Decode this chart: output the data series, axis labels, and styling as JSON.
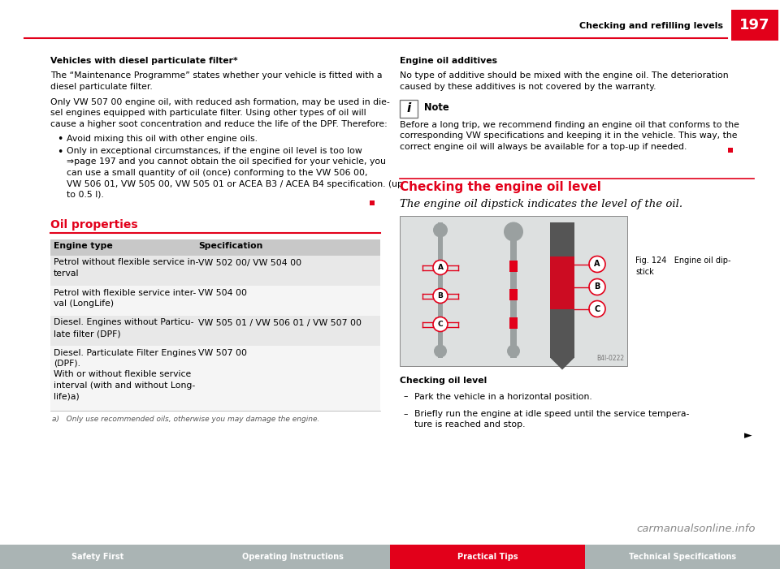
{
  "page_number": "197",
  "header_text": "Checking and refilling levels",
  "header_line_color": "#e2001a",
  "page_bg": "#ffffff",
  "section1_title": "Vehicles with diesel particulate filter*",
  "section1_para1_lines": [
    "The “Maintenance Programme” states whether your vehicle is fitted with a",
    "diesel particulate filter."
  ],
  "section1_para2_lines": [
    "Only VW 507 00 engine oil, with reduced ash formation, may be used in die-",
    "sel engines equipped with particulate filter. Using other types of oil will",
    "cause a higher soot concentration and reduce the life of the DPF. Therefore:"
  ],
  "section1_bullet1": "Avoid mixing this oil with other engine oils.",
  "section1_bullet2_lines": [
    "Only in exceptional circumstances, if the engine oil level is too low",
    "⇒page 197 and you cannot obtain the oil specified for your vehicle, you",
    "can use a small quantity of oil (once) conforming to the VW 506 00,",
    "VW 506 01, VW 505 00, VW 505 01 or ACEA B3 / ACEA B4 specification. (up",
    "to 0.5 l)."
  ],
  "oil_props_title": "Oil properties",
  "oil_props_title_color": "#e2001a",
  "table_headers": [
    "Engine type",
    "Specification"
  ],
  "table_col1_rows": [
    "Petrol without flexible service in-\nterval",
    "Petrol with flexible service inter-\nval (LongLife)",
    "Diesel. Engines without Particu-\nlate filter (DPF)",
    "Diesel. Particulate Filter Engines\n(DPF).\nWith or without flexible service\ninterval (with and without Long-\nlife)a)"
  ],
  "table_col2_rows": [
    "VW 502 00/ VW 504 00",
    "VW 504 00",
    "VW 505 01 / VW 506 01 / VW 507 00",
    "VW 507 00"
  ],
  "table_footnote": "a)   Only use recommended oils, otherwise you may damage the engine.",
  "table_header_bg": "#c8c8c8",
  "table_row_bg_even": "#e8e8e8",
  "table_row_bg_odd": "#f5f5f5",
  "right_section_title": "Engine oil additives",
  "right_section_para_lines": [
    "No type of additive should be mixed with the engine oil. The deterioration",
    "caused by these additives is not covered by the warranty."
  ],
  "note_title": "Note",
  "note_para_lines": [
    "Before a long trip, we recommend finding an engine oil that conforms to the",
    "corresponding VW specifications and keeping it in the vehicle. This way, the",
    "correct engine oil will always be available for a top-up if needed."
  ],
  "checking_title": "Checking the engine oil level",
  "checking_subtitle": "The engine oil dipstick indicates the level of the oil.",
  "fig_caption_line1": "Fig. 124   Engine oil dip-",
  "fig_caption_line2": "stick",
  "checking_oil_level_title": "Checking oil level",
  "checking_bullet1": "Park the vehicle in a horizontal position.",
  "checking_bullet2_lines": [
    "Briefly run the engine at idle speed until the service tempera-",
    "ture is reached and stop."
  ],
  "bottom_tabs": [
    "Safety First",
    "Operating Instructions",
    "Practical Tips",
    "Technical Specifications"
  ],
  "bottom_tab_colors": [
    "#aab4b4",
    "#aab4b4",
    "#e2001a",
    "#aab4b4"
  ],
  "bottom_text_colors": [
    "#ffffff",
    "#ffffff",
    "#ffffff",
    "#ffffff"
  ],
  "watermark": "carmanualsonline.info",
  "red_color": "#e2001a",
  "note_icon_bg": "#666666",
  "note_box_border": "#999999"
}
